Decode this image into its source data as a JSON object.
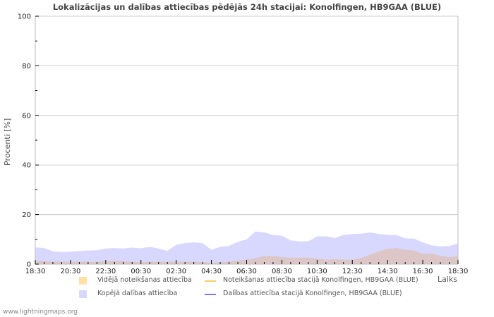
{
  "chart_data": {
    "type": "area",
    "title": "Lokalizācijas un dalības attiecības pēdējās 24h stacijai: Konolfingen, HB9GAA (BLUE)",
    "xlabel": "Laiks",
    "ylabel": "Procenti   [%]",
    "ylim": [
      0,
      100
    ],
    "yticks": [
      "0",
      "20",
      "40",
      "60",
      "80",
      "100"
    ],
    "xticks": [
      "18:30",
      "20:30",
      "22:30",
      "00:30",
      "02:30",
      "04:30",
      "06:30",
      "08:30",
      "10:30",
      "12:30",
      "14:30",
      "16:30",
      "18:30"
    ],
    "grid": "horizontal",
    "legend_position": "bottom",
    "x": [
      "18:30",
      "19:00",
      "19:30",
      "20:00",
      "20:30",
      "21:00",
      "21:30",
      "22:00",
      "22:30",
      "23:00",
      "23:30",
      "00:00",
      "00:30",
      "01:00",
      "01:30",
      "02:00",
      "02:30",
      "03:00",
      "03:30",
      "04:00",
      "04:30",
      "05:00",
      "05:30",
      "06:00",
      "06:30",
      "07:00",
      "07:30",
      "08:00",
      "08:30",
      "09:00",
      "09:30",
      "10:00",
      "10:30",
      "11:00",
      "11:30",
      "12:00",
      "12:30",
      "13:00",
      "13:30",
      "14:00",
      "14:30",
      "15:00",
      "15:30",
      "16:00",
      "16:30",
      "17:00",
      "17:30",
      "18:00",
      "18:30"
    ],
    "series": [
      {
        "name": "Kopējā dalības attiecība",
        "kind": "area",
        "color": "#d8d8ff",
        "values": [
          6.8,
          6.5,
          5.2,
          4.9,
          5.0,
          5.3,
          5.5,
          5.6,
          6.3,
          6.5,
          6.3,
          6.7,
          6.4,
          7.0,
          6.3,
          5.3,
          7.8,
          8.5,
          8.8,
          8.5,
          5.8,
          7.0,
          7.4,
          9.0,
          10.0,
          13.2,
          12.8,
          11.8,
          11.5,
          9.6,
          9.2,
          9.2,
          11.2,
          11.3,
          10.6,
          11.8,
          12.2,
          12.3,
          12.8,
          12.2,
          11.8,
          11.8,
          10.4,
          10.3,
          8.8,
          7.6,
          7.2,
          7.3,
          8.3
        ]
      },
      {
        "name": "Vidējā noteikšanas attiecība",
        "kind": "area",
        "color": "#ffe0a8",
        "values": [
          1.5,
          1.2,
          1.0,
          1.0,
          1.0,
          1.0,
          1.0,
          1.0,
          1.2,
          1.3,
          1.2,
          1.0,
          0.8,
          1.0,
          1.0,
          1.0,
          1.0,
          1.0,
          1.0,
          0.8,
          0.5,
          0.7,
          1.0,
          1.5,
          1.8,
          2.5,
          3.2,
          3.4,
          2.8,
          2.6,
          2.6,
          2.6,
          2.2,
          1.8,
          2.0,
          1.8,
          1.8,
          2.5,
          3.8,
          5.0,
          6.2,
          6.5,
          5.8,
          5.5,
          4.2,
          4.2,
          3.5,
          2.8,
          3.2
        ]
      },
      {
        "name": "Noteikšanas attiecība stacijā Konolfingen, HB9GAA (BLUE)",
        "kind": "line",
        "color": "#ffcc66",
        "values": []
      },
      {
        "name": "Dalības attiecība stacijā Konolfingen, HB9GAA (BLUE)",
        "kind": "line",
        "color": "#7777ee",
        "values": []
      }
    ]
  },
  "header": {
    "title": "Lokalizācijas un dalības attiecības pēdējās 24h stacijai: Konolfingen, HB9GAA (BLUE)"
  },
  "axes": {
    "ylabel": "Procenti   [%]",
    "xlabel": "Laiks"
  },
  "legend": {
    "items": [
      {
        "label": "Vidējā noteikšanas attiecība",
        "type": "swatch",
        "color": "#ffe0a8"
      },
      {
        "label": "Noteikšanas attiecība stacijā Konolfingen, HB9GAA (BLUE)",
        "type": "line",
        "color": "#ffcc66"
      },
      {
        "label": "Kopējā dalības attiecība",
        "type": "swatch",
        "color": "#d8d8ff"
      },
      {
        "label": "Dalības attiecība stacijā Konolfingen, HB9GAA (BLUE)",
        "type": "line",
        "color": "#7777ee"
      }
    ]
  },
  "footer": {
    "text": "www.lightningmaps.org"
  },
  "colors": {
    "grid": "#cccccc",
    "axis": "#bbbbbb",
    "overlap": "#dcc6c6"
  }
}
